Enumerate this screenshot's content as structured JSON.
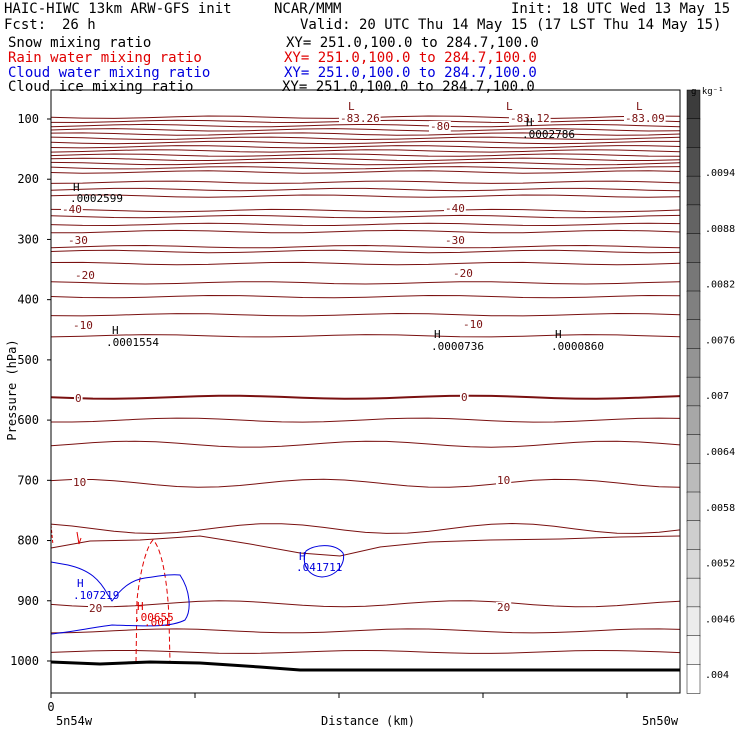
{
  "header": {
    "title": "HAIC-HIWC 13km ARW-GFS init",
    "center": "NCAR/MMM",
    "init": "Init: 18 UTC Wed 13 May 15",
    "fcst_label": "Fcst:",
    "fcst_value": "26 h",
    "valid": "Valid: 20 UTC Thu 14 May 15 (17 LST Thu 14 May 15)"
  },
  "fields": [
    {
      "name": "Snow mixing ratio",
      "xy": "XY= 251.0,100.0 to 284.7,100.0",
      "color": "#000000"
    },
    {
      "name": "Rain water mixing ratio",
      "xy": "XY= 251.0,100.0 to 284.7,100.0",
      "color": "#e00000"
    },
    {
      "name": "Cloud water mixing ratio",
      "xy": "XY= 251.0,100.0 to 284.7,100.0",
      "color": "#0000dd"
    },
    {
      "name": "Cloud ice mixing ratio",
      "xy": "XY= 251.0,100.0 to 284.7,100.0",
      "color": "#000000"
    }
  ],
  "chart_data": {
    "type": "contour",
    "ylabel": "Pressure (hPa)",
    "xlabel": "Distance (km)",
    "y_ticks": [
      100,
      200,
      300,
      400,
      500,
      600,
      700,
      800,
      900,
      1000
    ],
    "x_tick_label": "0",
    "x_left_label": "5n54w",
    "x_right_label": "5n50w",
    "colorbar_unit": "g kg⁻¹",
    "colorbar_labels": [
      ".0094",
      ".0088",
      ".0082",
      ".0076",
      ".007",
      ".0064",
      ".0058",
      ".0052",
      ".0046",
      ".004"
    ],
    "temperature_contour_labels": [
      "-83.26",
      "-83.12",
      "-83.09",
      "-80",
      "-40",
      "-40",
      "-30",
      "-30",
      "-20",
      "-20",
      "-10",
      "-10",
      "0",
      "0",
      "10",
      "10",
      "20",
      "20"
    ],
    "extrema": [
      {
        "type": "L",
        "label": "L"
      },
      {
        "type": "L",
        "label": "L"
      },
      {
        "type": "L",
        "label": "L"
      },
      {
        "type": "H",
        "label": "H",
        "value": ".0002786"
      },
      {
        "type": "H",
        "label": "H",
        "value": ".0002599"
      },
      {
        "type": "H",
        "label": "H",
        "value": ".0001554"
      },
      {
        "type": "H",
        "label": "H",
        "value": ".0000736"
      },
      {
        "type": "H",
        "label": "H",
        "value": ".0000860"
      },
      {
        "type": "H",
        "label": "H",
        "value": ".041711"
      },
      {
        "type": "H",
        "label": "H",
        "value": ".107219"
      },
      {
        "type": "H",
        "label": "H",
        "value": ".00655"
      },
      {
        "type": "value",
        "value": ".001"
      }
    ],
    "colors": {
      "temperature": "#7a1010",
      "rain": "#e00000",
      "cloud": "#0000dd",
      "ground": "#000000"
    }
  }
}
